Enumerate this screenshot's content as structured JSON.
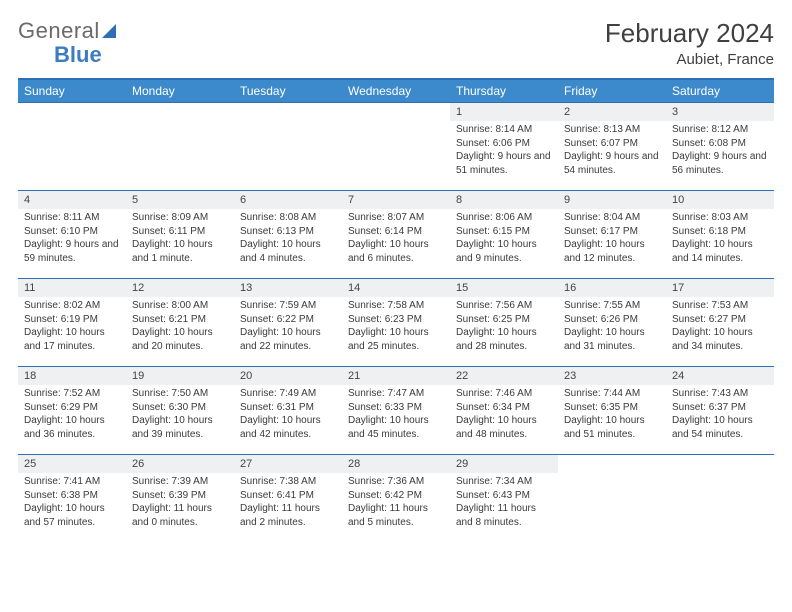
{
  "brand": {
    "part1": "General",
    "part2": "Blue"
  },
  "title": "February 2024",
  "location": "Aubiet, France",
  "colors": {
    "header_bg": "#3c8acb",
    "header_text": "#ffffff",
    "border": "#2d6fb5",
    "daynum_bg": "#eef0f2",
    "text": "#3a3a3a",
    "page_bg": "#ffffff"
  },
  "weekdays": [
    "Sunday",
    "Monday",
    "Tuesday",
    "Wednesday",
    "Thursday",
    "Friday",
    "Saturday"
  ],
  "weeks": [
    [
      {
        "n": "",
        "sr": "",
        "ss": "",
        "dl": "",
        "empty": true
      },
      {
        "n": "",
        "sr": "",
        "ss": "",
        "dl": "",
        "empty": true
      },
      {
        "n": "",
        "sr": "",
        "ss": "",
        "dl": "",
        "empty": true
      },
      {
        "n": "",
        "sr": "",
        "ss": "",
        "dl": "",
        "empty": true
      },
      {
        "n": "1",
        "sr": "Sunrise: 8:14 AM",
        "ss": "Sunset: 6:06 PM",
        "dl": "Daylight: 9 hours and 51 minutes."
      },
      {
        "n": "2",
        "sr": "Sunrise: 8:13 AM",
        "ss": "Sunset: 6:07 PM",
        "dl": "Daylight: 9 hours and 54 minutes."
      },
      {
        "n": "3",
        "sr": "Sunrise: 8:12 AM",
        "ss": "Sunset: 6:08 PM",
        "dl": "Daylight: 9 hours and 56 minutes."
      }
    ],
    [
      {
        "n": "4",
        "sr": "Sunrise: 8:11 AM",
        "ss": "Sunset: 6:10 PM",
        "dl": "Daylight: 9 hours and 59 minutes."
      },
      {
        "n": "5",
        "sr": "Sunrise: 8:09 AM",
        "ss": "Sunset: 6:11 PM",
        "dl": "Daylight: 10 hours and 1 minute."
      },
      {
        "n": "6",
        "sr": "Sunrise: 8:08 AM",
        "ss": "Sunset: 6:13 PM",
        "dl": "Daylight: 10 hours and 4 minutes."
      },
      {
        "n": "7",
        "sr": "Sunrise: 8:07 AM",
        "ss": "Sunset: 6:14 PM",
        "dl": "Daylight: 10 hours and 6 minutes."
      },
      {
        "n": "8",
        "sr": "Sunrise: 8:06 AM",
        "ss": "Sunset: 6:15 PM",
        "dl": "Daylight: 10 hours and 9 minutes."
      },
      {
        "n": "9",
        "sr": "Sunrise: 8:04 AM",
        "ss": "Sunset: 6:17 PM",
        "dl": "Daylight: 10 hours and 12 minutes."
      },
      {
        "n": "10",
        "sr": "Sunrise: 8:03 AM",
        "ss": "Sunset: 6:18 PM",
        "dl": "Daylight: 10 hours and 14 minutes."
      }
    ],
    [
      {
        "n": "11",
        "sr": "Sunrise: 8:02 AM",
        "ss": "Sunset: 6:19 PM",
        "dl": "Daylight: 10 hours and 17 minutes."
      },
      {
        "n": "12",
        "sr": "Sunrise: 8:00 AM",
        "ss": "Sunset: 6:21 PM",
        "dl": "Daylight: 10 hours and 20 minutes."
      },
      {
        "n": "13",
        "sr": "Sunrise: 7:59 AM",
        "ss": "Sunset: 6:22 PM",
        "dl": "Daylight: 10 hours and 22 minutes."
      },
      {
        "n": "14",
        "sr": "Sunrise: 7:58 AM",
        "ss": "Sunset: 6:23 PM",
        "dl": "Daylight: 10 hours and 25 minutes."
      },
      {
        "n": "15",
        "sr": "Sunrise: 7:56 AM",
        "ss": "Sunset: 6:25 PM",
        "dl": "Daylight: 10 hours and 28 minutes."
      },
      {
        "n": "16",
        "sr": "Sunrise: 7:55 AM",
        "ss": "Sunset: 6:26 PM",
        "dl": "Daylight: 10 hours and 31 minutes."
      },
      {
        "n": "17",
        "sr": "Sunrise: 7:53 AM",
        "ss": "Sunset: 6:27 PM",
        "dl": "Daylight: 10 hours and 34 minutes."
      }
    ],
    [
      {
        "n": "18",
        "sr": "Sunrise: 7:52 AM",
        "ss": "Sunset: 6:29 PM",
        "dl": "Daylight: 10 hours and 36 minutes."
      },
      {
        "n": "19",
        "sr": "Sunrise: 7:50 AM",
        "ss": "Sunset: 6:30 PM",
        "dl": "Daylight: 10 hours and 39 minutes."
      },
      {
        "n": "20",
        "sr": "Sunrise: 7:49 AM",
        "ss": "Sunset: 6:31 PM",
        "dl": "Daylight: 10 hours and 42 minutes."
      },
      {
        "n": "21",
        "sr": "Sunrise: 7:47 AM",
        "ss": "Sunset: 6:33 PM",
        "dl": "Daylight: 10 hours and 45 minutes."
      },
      {
        "n": "22",
        "sr": "Sunrise: 7:46 AM",
        "ss": "Sunset: 6:34 PM",
        "dl": "Daylight: 10 hours and 48 minutes."
      },
      {
        "n": "23",
        "sr": "Sunrise: 7:44 AM",
        "ss": "Sunset: 6:35 PM",
        "dl": "Daylight: 10 hours and 51 minutes."
      },
      {
        "n": "24",
        "sr": "Sunrise: 7:43 AM",
        "ss": "Sunset: 6:37 PM",
        "dl": "Daylight: 10 hours and 54 minutes."
      }
    ],
    [
      {
        "n": "25",
        "sr": "Sunrise: 7:41 AM",
        "ss": "Sunset: 6:38 PM",
        "dl": "Daylight: 10 hours and 57 minutes."
      },
      {
        "n": "26",
        "sr": "Sunrise: 7:39 AM",
        "ss": "Sunset: 6:39 PM",
        "dl": "Daylight: 11 hours and 0 minutes."
      },
      {
        "n": "27",
        "sr": "Sunrise: 7:38 AM",
        "ss": "Sunset: 6:41 PM",
        "dl": "Daylight: 11 hours and 2 minutes."
      },
      {
        "n": "28",
        "sr": "Sunrise: 7:36 AM",
        "ss": "Sunset: 6:42 PM",
        "dl": "Daylight: 11 hours and 5 minutes."
      },
      {
        "n": "29",
        "sr": "Sunrise: 7:34 AM",
        "ss": "Sunset: 6:43 PM",
        "dl": "Daylight: 11 hours and 8 minutes."
      },
      {
        "n": "",
        "sr": "",
        "ss": "",
        "dl": "",
        "empty": true
      },
      {
        "n": "",
        "sr": "",
        "ss": "",
        "dl": "",
        "empty": true
      }
    ]
  ]
}
